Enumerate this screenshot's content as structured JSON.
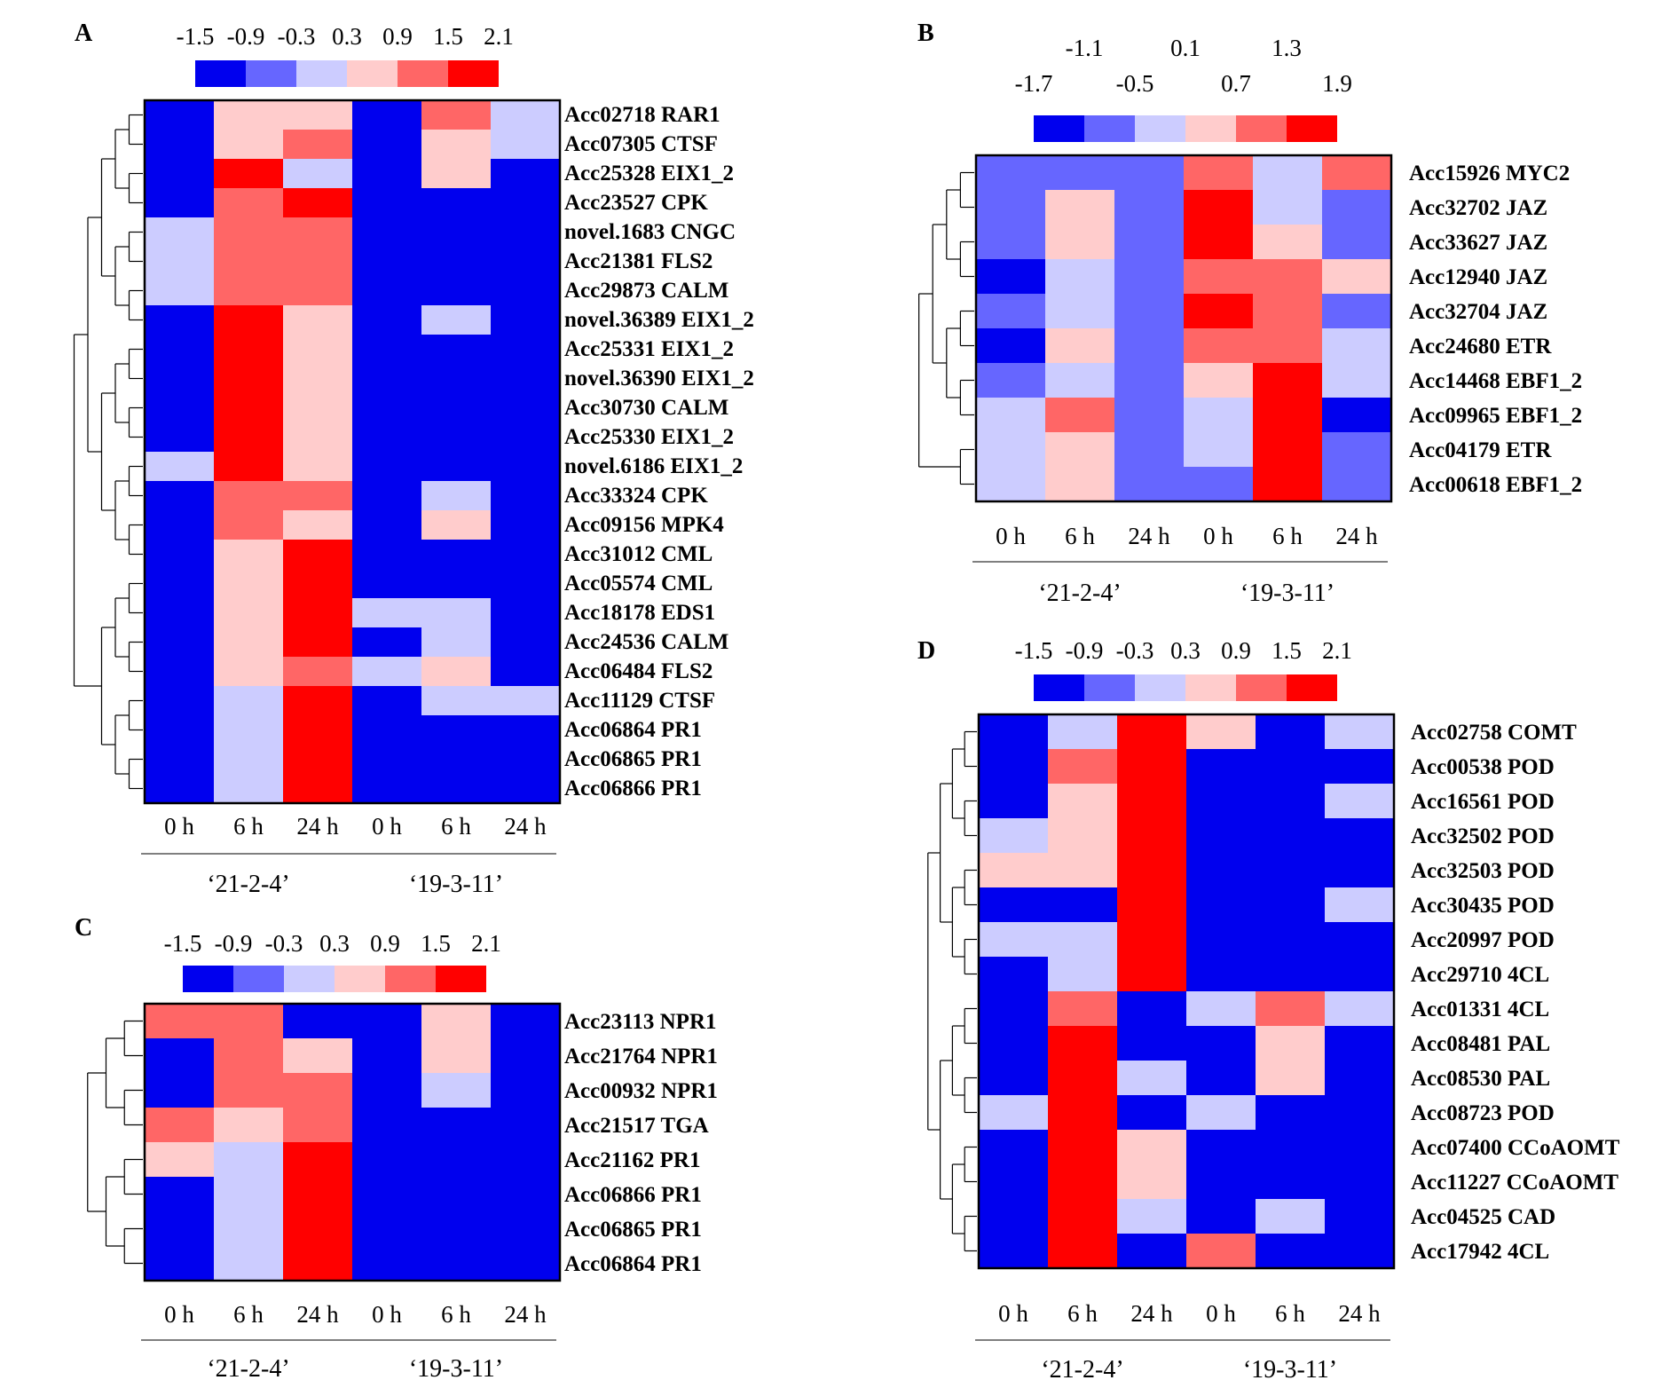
{
  "palette": {
    "c1": "#0000ee",
    "c2": "#6666ff",
    "c3": "#ccccff",
    "c4": "#ffcccc",
    "c5": "#ff6666",
    "c6": "#ff0000"
  },
  "chart_data": [
    {
      "type": "heatmap",
      "panel": "A",
      "legend_ticks": [
        "-1.5",
        "-0.9",
        "-0.3",
        "0.3",
        "0.9",
        "1.5",
        "2.1"
      ],
      "columns": [
        "0 h",
        "6 h",
        "24 h",
        "0 h",
        "6 h",
        "24 h"
      ],
      "groups": [
        "‘21-2-4’",
        "‘19-3-11’"
      ],
      "rows": [
        "Acc02718 RAR1",
        "Acc07305 CTSF",
        "Acc25328 EIX1_2",
        "Acc23527 CPK",
        "novel.1683 CNGC",
        "Acc21381 FLS2",
        "Acc29873 CALM",
        "novel.36389 EIX1_2",
        "Acc25331 EIX1_2",
        "novel.36390 EIX1_2",
        "Acc30730 CALM",
        "Acc25330 EIX1_2",
        "novel.6186 EIX1_2",
        "Acc33324 CPK",
        "Acc09156 MPK4",
        "Acc31012 CML",
        "Acc05574 CML",
        "Acc18178 EDS1",
        "Acc24536 CALM",
        "Acc06484 FLS2",
        "Acc11129 CTSF",
        "Acc06864 PR1",
        "Acc06865 PR1",
        "Acc06866 PR1"
      ],
      "values": [
        [
          -1.5,
          0.6,
          0.6,
          -0.9,
          1.2,
          0.0
        ],
        [
          -1.5,
          0.6,
          1.2,
          -1.5,
          0.6,
          0.0
        ],
        [
          -1.5,
          1.8,
          0.0,
          -0.9,
          0.6,
          -0.9
        ],
        [
          -0.9,
          1.2,
          1.8,
          -0.9,
          -0.9,
          -0.9
        ],
        [
          0.0,
          1.2,
          1.2,
          -0.9,
          -0.9,
          -0.9
        ],
        [
          0.0,
          1.2,
          1.2,
          -0.9,
          -1.5,
          -0.9
        ],
        [
          0.0,
          1.2,
          1.2,
          -0.9,
          -0.9,
          -1.5
        ],
        [
          -0.9,
          1.8,
          0.6,
          -0.9,
          0.0,
          -1.5
        ],
        [
          -0.9,
          1.8,
          0.6,
          -0.9,
          -0.9,
          -1.5
        ],
        [
          -0.9,
          1.8,
          0.6,
          -0.9,
          -0.9,
          -1.5
        ],
        [
          -0.9,
          1.8,
          0.6,
          -0.9,
          -0.9,
          -0.9
        ],
        [
          -0.9,
          1.8,
          0.6,
          -0.9,
          -0.9,
          -0.9
        ],
        [
          0.0,
          1.8,
          0.6,
          -0.9,
          -0.9,
          -0.9
        ],
        [
          -0.9,
          1.2,
          1.2,
          -0.9,
          0.0,
          -1.5
        ],
        [
          -0.9,
          1.2,
          0.6,
          -1.5,
          0.6,
          -0.9
        ],
        [
          -1.5,
          0.6,
          1.8,
          -0.9,
          -0.9,
          -0.9
        ],
        [
          -0.9,
          0.6,
          1.8,
          -0.9,
          -0.9,
          -0.9
        ],
        [
          -1.5,
          0.6,
          1.8,
          0.0,
          0.0,
          -1.5
        ],
        [
          -0.9,
          0.6,
          1.8,
          -0.9,
          0.0,
          -1.5
        ],
        [
          -1.5,
          0.6,
          1.2,
          0.0,
          0.6,
          -1.5
        ],
        [
          -1.5,
          0.0,
          1.8,
          -1.5,
          0.0,
          0.0
        ],
        [
          -0.9,
          0.0,
          1.8,
          -0.9,
          -0.9,
          -0.9
        ],
        [
          -0.9,
          0.0,
          1.8,
          -0.9,
          -0.9,
          -0.9
        ],
        [
          -0.9,
          0.0,
          1.8,
          -0.9,
          -0.9,
          -0.9
        ]
      ]
    },
    {
      "type": "heatmap",
      "panel": "B",
      "legend_ticks": [
        "-1.7",
        "-1.1",
        "-0.5",
        "0.1",
        "0.7",
        "1.3",
        "1.9"
      ],
      "columns": [
        "0 h",
        "6 h",
        "24 h",
        "0 h",
        "6 h",
        "24 h"
      ],
      "groups": [
        "‘21-2-4’",
        "‘19-3-11’"
      ],
      "rows": [
        "Acc15926 MYC2",
        "Acc32702 JAZ",
        "Acc33627 JAZ",
        "Acc12940 JAZ",
        "Acc32704 JAZ",
        "Acc24680 ETR",
        "Acc14468 EBF1_2",
        "Acc09965 EBF1_2",
        "Acc04179 ETR",
        "Acc00618 EBF1_2"
      ],
      "values": [
        [
          -0.8,
          -0.8,
          -0.8,
          1.0,
          -0.2,
          1.0
        ],
        [
          -0.8,
          0.4,
          -0.8,
          1.6,
          -0.2,
          -0.8
        ],
        [
          -0.8,
          0.4,
          -0.8,
          1.6,
          0.4,
          -0.8
        ],
        [
          -1.4,
          -0.2,
          -0.8,
          1.0,
          1.0,
          0.4
        ],
        [
          -0.8,
          -0.2,
          -0.8,
          1.6,
          1.0,
          -0.8
        ],
        [
          -1.4,
          0.4,
          -0.8,
          1.0,
          1.0,
          -0.2
        ],
        [
          -0.8,
          -0.2,
          -0.8,
          0.4,
          1.6,
          -0.2
        ],
        [
          -0.2,
          1.0,
          -0.8,
          -0.2,
          1.6,
          -1.4
        ],
        [
          -0.2,
          0.4,
          -0.8,
          -0.2,
          1.6,
          -0.8
        ],
        [
          -0.2,
          0.4,
          -0.8,
          -0.8,
          1.6,
          -0.8
        ]
      ]
    },
    {
      "type": "heatmap",
      "panel": "C",
      "legend_ticks": [
        "-1.5",
        "-0.9",
        "-0.3",
        "0.3",
        "0.9",
        "1.5",
        "2.1"
      ],
      "columns": [
        "0 h",
        "6 h",
        "24 h",
        "0 h",
        "6 h",
        "24 h"
      ],
      "groups": [
        "‘21-2-4’",
        "‘19-3-11’"
      ],
      "rows": [
        "Acc23113 NPR1",
        "Acc21764 NPR1",
        "Acc00932 NPR1",
        "Acc21517 TGA",
        "Acc21162 PR1",
        "Acc06866 PR1",
        "Acc06865 PR1",
        "Acc06864 PR1"
      ],
      "values": [
        [
          1.2,
          1.2,
          -1.5,
          -1.5,
          0.6,
          -0.9
        ],
        [
          -0.9,
          1.2,
          0.6,
          -0.9,
          0.6,
          -1.5
        ],
        [
          -0.9,
          1.2,
          1.2,
          -0.9,
          0.0,
          -1.5
        ],
        [
          1.2,
          0.6,
          1.2,
          -0.9,
          -1.5,
          -1.5
        ],
        [
          0.6,
          0.0,
          1.8,
          -0.9,
          -0.9,
          -0.9
        ],
        [
          -0.9,
          0.0,
          1.8,
          -0.9,
          -0.9,
          -0.9
        ],
        [
          -0.9,
          0.0,
          1.8,
          -0.9,
          -0.9,
          -0.9
        ],
        [
          -0.9,
          0.0,
          1.8,
          -0.9,
          -0.9,
          -0.9
        ]
      ]
    },
    {
      "type": "heatmap",
      "panel": "D",
      "legend_ticks": [
        "-1.5",
        "-0.9",
        "-0.3",
        "0.3",
        "0.9",
        "1.5",
        "2.1"
      ],
      "columns": [
        "0 h",
        "6 h",
        "24 h",
        "0 h",
        "6 h",
        "24 h"
      ],
      "groups": [
        "‘21-2-4’",
        "‘19-3-11’"
      ],
      "rows": [
        "Acc02758 COMT",
        "Acc00538 POD",
        "Acc16561 POD",
        "Acc32502 POD",
        "Acc32503 POD",
        "Acc30435 POD",
        "Acc20997 POD",
        "Acc29710 4CL",
        "Acc01331 4CL",
        "Acc08481 PAL",
        "Acc08530 PAL",
        "Acc08723 POD",
        "Acc07400 CCoAOMT",
        "Acc11227 CCoAOMT",
        "Acc04525 CAD",
        "Acc17942 4CL"
      ],
      "values": [
        [
          -0.9,
          0.0,
          1.8,
          0.6,
          -1.5,
          0.0
        ],
        [
          -0.9,
          1.2,
          1.8,
          -0.9,
          -0.9,
          -0.9
        ],
        [
          -0.9,
          0.6,
          1.8,
          -1.5,
          -0.9,
          0.0
        ],
        [
          0.0,
          0.6,
          1.8,
          -0.9,
          -0.9,
          -0.9
        ],
        [
          0.6,
          0.6,
          1.8,
          -0.9,
          -0.9,
          -0.9
        ],
        [
          -0.9,
          -0.9,
          1.8,
          -0.9,
          -0.9,
          0.0
        ],
        [
          0.0,
          0.0,
          1.8,
          -0.9,
          -0.9,
          -0.9
        ],
        [
          -0.9,
          0.0,
          1.8,
          -0.9,
          -0.9,
          -0.9
        ],
        [
          -1.5,
          1.2,
          -0.9,
          0.0,
          1.2,
          0.0
        ],
        [
          -0.9,
          1.8,
          -0.9,
          -0.9,
          0.6,
          -0.9
        ],
        [
          -0.9,
          1.8,
          0.0,
          -0.9,
          0.6,
          -0.9
        ],
        [
          0.0,
          1.8,
          -0.9,
          0.0,
          -0.9,
          -0.9
        ],
        [
          -0.9,
          1.8,
          0.6,
          -0.9,
          -0.9,
          -0.9
        ],
        [
          -0.9,
          1.8,
          0.6,
          -0.9,
          -0.9,
          -0.9
        ],
        [
          -0.9,
          1.8,
          0.0,
          -0.9,
          0.0,
          -0.9
        ],
        [
          -0.9,
          1.8,
          -0.9,
          1.2,
          -0.9,
          -0.9
        ]
      ]
    }
  ]
}
